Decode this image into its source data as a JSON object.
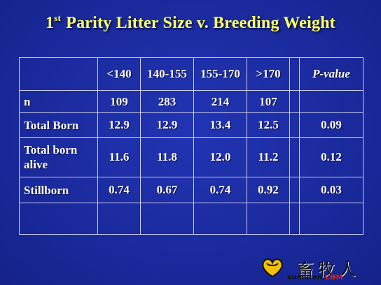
{
  "title": {
    "sup": "st",
    "number": "1",
    "text": "Parity Litter Size v. Breeding Weight"
  },
  "table": {
    "headers": [
      "",
      "<140",
      "140-155",
      "155-170",
      ">170",
      "",
      "P-value"
    ],
    "rows": [
      {
        "label": "n",
        "values": [
          "109",
          "283",
          "214",
          "107"
        ],
        "p": ""
      },
      {
        "label": "Total Born",
        "values": [
          "12.9",
          "12.9",
          "13.4",
          "12.5"
        ],
        "p": "0.09"
      },
      {
        "label_line1": "Total born",
        "label_line2": "alive",
        "values": [
          "11.6",
          "11.8",
          "12.0",
          "11.2"
        ],
        "p": "0.12"
      },
      {
        "label": "Stillborn",
        "values": [
          "0.74",
          "0.67",
          "0.74",
          "0.92"
        ],
        "p": "0.03"
      }
    ]
  },
  "watermark": {
    "cn": "畜牧人",
    "url_main": "xumuren.",
    "url_tld": "COM",
    "mark_colors": [
      "#f2c200",
      "#111111"
    ]
  }
}
